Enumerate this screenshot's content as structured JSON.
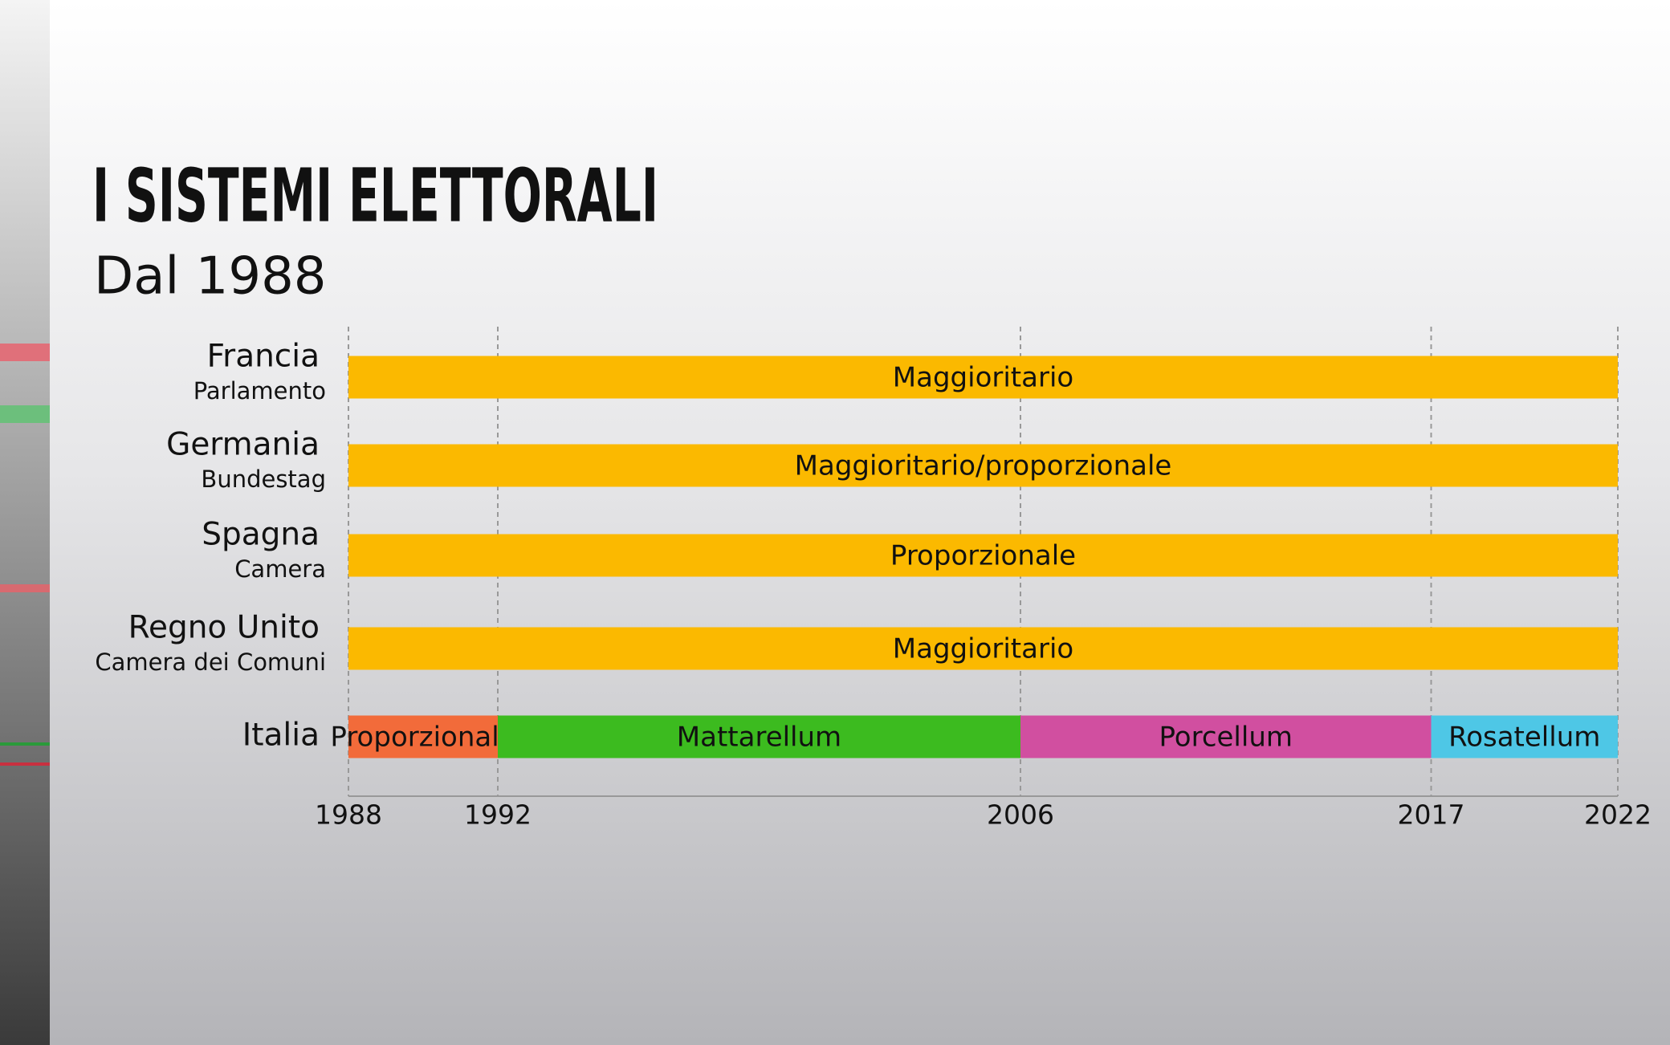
{
  "chart_data": {
    "type": "timeline",
    "title": "I SISTEMI ELETTORALI",
    "subtitle": "Dal 1988",
    "xlim": [
      1988,
      2022
    ],
    "xticks": [
      1988,
      1992,
      2006,
      2017,
      2022
    ],
    "grid": true,
    "rows": [
      {
        "name": "Francia",
        "subtitle": "Parlamento",
        "segments": [
          {
            "label": "Maggioritario",
            "start": 1988,
            "end": 2022,
            "color": "#fbb900"
          }
        ]
      },
      {
        "name": "Germania",
        "subtitle": "Bundestag",
        "segments": [
          {
            "label": "Maggioritario/proporzionale",
            "start": 1988,
            "end": 2022,
            "color": "#fbb900"
          }
        ]
      },
      {
        "name": "Spagna",
        "subtitle": "Camera",
        "segments": [
          {
            "label": "Proporzionale",
            "start": 1988,
            "end": 2022,
            "color": "#fbb900"
          }
        ]
      },
      {
        "name": "Regno Unito",
        "subtitle": "Camera dei Comuni",
        "segments": [
          {
            "label": "Maggioritario",
            "start": 1988,
            "end": 2022,
            "color": "#fbb900"
          }
        ]
      },
      {
        "name": "Italia",
        "segments": [
          {
            "label": "Proporzionale",
            "start": 1988,
            "end": 1992,
            "color": "#f26b3a"
          },
          {
            "label": "Mattarellum",
            "start": 1992,
            "end": 2006,
            "color": "#3cbb1f"
          },
          {
            "label": "Porcellum",
            "start": 2006,
            "end": 2017,
            "color": "#d14fa0"
          },
          {
            "label": "Rosatellum",
            "start": 2017,
            "end": 2022,
            "color": "#4ec7e6"
          }
        ]
      }
    ]
  }
}
